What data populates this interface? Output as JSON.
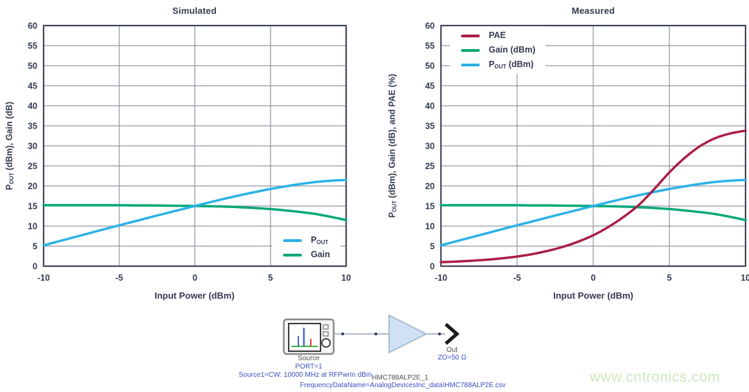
{
  "style": {
    "text_color": "#343b50",
    "grid_color": "#9296a4",
    "border_color": "#414a5c",
    "legend_background": "#ffffff"
  },
  "chart_data": [
    {
      "type": "line",
      "name": "simulated",
      "title": "Simulated",
      "xlabel": "Input Power (dBm)",
      "ylabel_parts": [
        {
          "t": "P"
        },
        {
          "t": "OUT",
          "sub": true
        },
        {
          "t": " (dBm), Gain (dB)"
        }
      ],
      "xlim": [
        -10,
        10
      ],
      "ylim": [
        0,
        60
      ],
      "xticks": [
        -10,
        -5,
        0,
        5,
        10
      ],
      "yticks": [
        0,
        5,
        10,
        15,
        20,
        25,
        30,
        35,
        40,
        45,
        50,
        55,
        60
      ],
      "grid": true,
      "x": [
        -10,
        -9,
        -8,
        -7,
        -6,
        -5,
        -4,
        -3,
        -2,
        -1,
        0,
        1,
        2,
        3,
        4,
        5,
        6,
        7,
        8,
        9,
        10
      ],
      "series": [
        {
          "id": "pout",
          "label_parts": [
            {
              "t": "P"
            },
            {
              "t": "OUT",
              "sub": true
            }
          ],
          "color": "#29b1e6",
          "values": [
            5.2,
            6.2,
            7.2,
            8.2,
            9.2,
            10.2,
            11.15,
            12.15,
            13.1,
            14.05,
            15.0,
            15.95,
            16.85,
            17.7,
            18.5,
            19.25,
            19.9,
            20.5,
            21.0,
            21.3,
            21.5
          ]
        },
        {
          "id": "gain",
          "label_parts": [
            {
              "t": "Gain"
            }
          ],
          "color": "#00a878",
          "values": [
            15.2,
            15.2,
            15.2,
            15.2,
            15.2,
            15.2,
            15.15,
            15.15,
            15.1,
            15.05,
            15.0,
            14.95,
            14.85,
            14.7,
            14.5,
            14.25,
            13.9,
            13.5,
            13.0,
            12.3,
            11.5
          ]
        }
      ],
      "legend_position": "bottom-right",
      "draw_order": [
        "gain",
        "pout"
      ]
    },
    {
      "type": "line",
      "name": "measured",
      "title": "Measured",
      "xlabel": "Input Power (dBm)",
      "ylabel_parts": [
        {
          "t": "P"
        },
        {
          "t": "OUT",
          "sub": true
        },
        {
          "t": " (dBm), Gain (dB), and PAE (%)"
        }
      ],
      "xlim": [
        -10,
        10
      ],
      "ylim": [
        0,
        60
      ],
      "xticks": [
        -10,
        -5,
        0,
        5,
        10
      ],
      "yticks": [
        0,
        5,
        10,
        15,
        20,
        25,
        30,
        35,
        40,
        45,
        50,
        55,
        60
      ],
      "grid": true,
      "x": [
        -10,
        -9,
        -8,
        -7,
        -6,
        -5,
        -4,
        -3,
        -2,
        -1,
        0,
        1,
        2,
        3,
        4,
        5,
        6,
        7,
        8,
        9,
        10
      ],
      "series": [
        {
          "id": "pae",
          "label_parts": [
            {
              "t": "PAE"
            }
          ],
          "color": "#aa1e45",
          "values": [
            1.0,
            1.15,
            1.35,
            1.6,
            1.95,
            2.4,
            3.0,
            3.8,
            4.8,
            6.1,
            7.7,
            9.8,
            12.3,
            15.3,
            19.2,
            23.4,
            27.0,
            29.9,
            31.9,
            33.1,
            33.8
          ]
        },
        {
          "id": "gain",
          "label_parts": [
            {
              "t": "Gain (dBm)"
            }
          ],
          "color": "#00a878",
          "values": [
            15.2,
            15.2,
            15.2,
            15.2,
            15.2,
            15.2,
            15.15,
            15.15,
            15.1,
            15.05,
            15.0,
            14.95,
            14.85,
            14.7,
            14.5,
            14.25,
            13.9,
            13.5,
            13.0,
            12.3,
            11.5
          ]
        },
        {
          "id": "pout",
          "label_parts": [
            {
              "t": "P"
            },
            {
              "t": "OUT",
              "sub": true
            },
            {
              "t": " (dBm)"
            }
          ],
          "color": "#29b1e6",
          "values": [
            5.2,
            6.2,
            7.2,
            8.2,
            9.2,
            10.2,
            11.15,
            12.15,
            13.1,
            14.05,
            15.0,
            15.95,
            16.85,
            17.7,
            18.5,
            19.25,
            19.9,
            20.5,
            21.0,
            21.3,
            21.5
          ]
        }
      ],
      "legend_position": "top-left",
      "draw_order": [
        "gain",
        "pout",
        "pae"
      ]
    }
  ],
  "schematic": {
    "source_label": "Source",
    "port_label": "PORT=1",
    "source_params": "Source1=CW: 10000 MHz at RFPwrIn dBm",
    "out_label": "Out",
    "impedance_label": "ZO=50 Ω",
    "component_name": "HMC788ALP2E_1",
    "data_file": "FrequencyDataName=AnalogDevicesInc_data\\HMC788ALP2E.csv",
    "text_blue": "#3b50c4",
    "text_dark": "#4f4f4f",
    "amplifier_fill": "#cfe1f3",
    "amplifier_stroke": "#9ab0c6"
  },
  "watermark": {
    "text": "www.cntronics.com",
    "color": "#cde8c0"
  }
}
